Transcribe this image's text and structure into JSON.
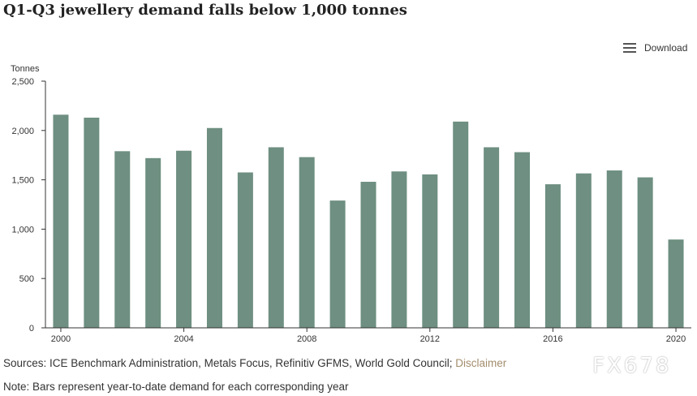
{
  "page": {
    "title": "Q1-Q3 jewellery demand falls below 1,000 tonnes",
    "download_label": "Download",
    "sources_prefix": "Sources: ICE Benchmark Administration, Metals Focus, Refinitiv GFMS, World Gold Council;",
    "disclaimer_label": "Disclaimer",
    "note": "Note: Bars represent year-to-date demand for each corresponding year",
    "watermark": "FX678"
  },
  "colors": {
    "bar": "#6e8f81",
    "axis": "#333333",
    "link": "#a38d6d"
  },
  "chart_data": {
    "type": "bar",
    "title": "Q1-Q3 jewellery demand falls below 1,000 tonnes",
    "ylabel": "Tonnes",
    "xlabel": "",
    "ylim": [
      0,
      2500
    ],
    "grid": false,
    "yticks": [
      0,
      500,
      1000,
      1500,
      2000,
      2500
    ],
    "ytick_labels": [
      "0",
      "500",
      "1,000",
      "1,500",
      "2,000",
      "2,500"
    ],
    "xtick_labels": [
      "2000",
      "2004",
      "2008",
      "2012",
      "2016",
      "2020"
    ],
    "xtick_years": [
      2000,
      2004,
      2008,
      2012,
      2016,
      2020
    ],
    "categories": [
      "2000",
      "2001",
      "2002",
      "2003",
      "2004",
      "2005",
      "2006",
      "2007",
      "2008",
      "2009",
      "2010",
      "2011",
      "2012",
      "2013",
      "2014",
      "2015",
      "2016",
      "2017",
      "2018",
      "2019",
      "2020"
    ],
    "values": [
      2160,
      2130,
      1790,
      1720,
      1795,
      2025,
      1575,
      1830,
      1730,
      1290,
      1480,
      1585,
      1555,
      2090,
      1830,
      1780,
      1455,
      1565,
      1595,
      1525,
      895
    ]
  }
}
